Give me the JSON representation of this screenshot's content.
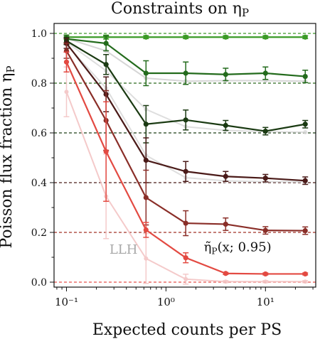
{
  "chart_data": {
    "type": "line",
    "title": "Constraints on η_P",
    "xlabel": "Expected counts per PS",
    "ylabel": "Poisson flux fraction η_P",
    "xscale": "log",
    "xlim": [
      0.075,
      32
    ],
    "ylim": [
      -0.02,
      1.04
    ],
    "x": [
      0.1,
      0.25,
      0.63,
      1.58,
      3.98,
      10.0,
      25.1
    ],
    "x_ticks": [
      {
        "value": 0.1,
        "label": "10⁻¹"
      },
      {
        "value": 1,
        "label": "10⁰"
      },
      {
        "value": 10,
        "label": "10¹"
      }
    ],
    "y_ticks": [
      {
        "value": 0.0,
        "label": "0.0"
      },
      {
        "value": 0.2,
        "label": "0.2"
      },
      {
        "value": 0.4,
        "label": "0.4"
      },
      {
        "value": 0.6,
        "label": "0.6"
      },
      {
        "value": 0.8,
        "label": "0.8"
      },
      {
        "value": 1.0,
        "label": "1.0"
      }
    ],
    "reference_lines": [
      {
        "y": 1.0,
        "color": "#3f9a2b"
      },
      {
        "y": 0.8,
        "color": "#2c6b1f"
      },
      {
        "y": 0.6,
        "color": "#1f3d17"
      },
      {
        "y": 0.4,
        "color": "#4a1d1a"
      },
      {
        "y": 0.2,
        "color": "#a23328"
      },
      {
        "y": 0.0,
        "color": "#e8504a"
      }
    ],
    "series": [
      {
        "color": "#3a9a25",
        "values": [
          0.985,
          0.985,
          0.985,
          0.985,
          0.985,
          0.985,
          0.985
        ],
        "err": [
          0.008,
          0.008,
          0.006,
          0.006,
          0.006,
          0.006,
          0.006
        ]
      },
      {
        "color": "#236b1c",
        "values": [
          0.978,
          0.96,
          0.84,
          0.84,
          0.835,
          0.84,
          0.827
        ],
        "err": [
          0.015,
          0.03,
          0.05,
          0.045,
          0.025,
          0.025,
          0.025
        ]
      },
      {
        "color": "#1a3a12",
        "values": [
          0.97,
          0.875,
          0.635,
          0.652,
          0.63,
          0.607,
          0.635
        ],
        "err": [
          0.015,
          0.04,
          0.075,
          0.04,
          0.02,
          0.015,
          0.015
        ]
      },
      {
        "color": "#4a1a18",
        "values": [
          0.96,
          0.755,
          0.49,
          0.445,
          0.425,
          0.418,
          0.408
        ],
        "err": [
          0.02,
          0.07,
          0.09,
          0.04,
          0.02,
          0.015,
          0.015
        ]
      },
      {
        "color": "#8a2e28",
        "values": [
          0.93,
          0.65,
          0.34,
          0.237,
          0.233,
          0.208,
          0.207
        ],
        "err": [
          0.03,
          0.12,
          0.11,
          0.05,
          0.025,
          0.015,
          0.015
        ]
      },
      {
        "color": "#e34a42",
        "values": [
          0.885,
          0.525,
          0.21,
          0.098,
          0.035,
          0.033,
          0.033
        ],
        "err": [
          0.04,
          0.2,
          0.03,
          0.02,
          0.004,
          0.004,
          0.004
        ]
      }
    ],
    "faded_series": [
      {
        "color": "#cfcfcf",
        "values": [
          0.98,
          0.93,
          0.82,
          0.808,
          0.81,
          0.81,
          0.808
        ]
      },
      {
        "color": "#d9d9d9",
        "values": [
          0.965,
          0.85,
          0.695,
          0.625,
          0.61,
          0.605,
          0.603
        ]
      },
      {
        "color": "#d9d9d9",
        "values": [
          0.955,
          0.78,
          0.51,
          0.42,
          0.407,
          0.404,
          0.403
        ]
      },
      {
        "color": "#f3c1c1",
        "values": [
          0.765,
          0.345,
          0.095,
          0.012,
          0.002,
          0.002,
          0.002
        ],
        "err": [
          0.1,
          0.17,
          0.1,
          0.02,
          0.004,
          0.004,
          0.004
        ]
      }
    ],
    "annotations": [
      {
        "text": "LLH",
        "color": "#a8a8a8",
        "x": 0.27,
        "y": 0.115
      },
      {
        "text": "η̃_P(x; 0.95)",
        "color": "#111111",
        "x": 2.4,
        "y": 0.125
      }
    ],
    "grid": false
  }
}
